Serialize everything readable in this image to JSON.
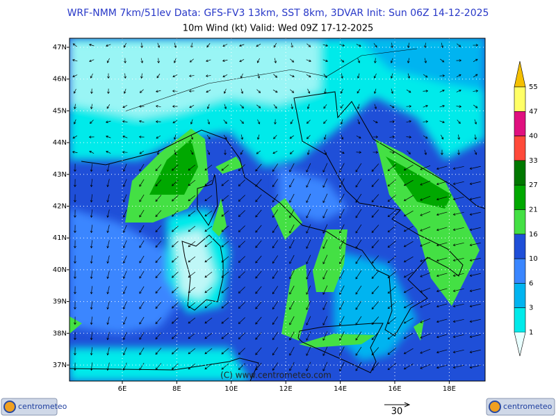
{
  "header": {
    "line1": "WRF-NMM 7km/51lev   Data: GFS-FV3 13km, SST 8km, 3DVAR   Init: Sun 06Z 14-12-2025",
    "line2": "10m Wind (kt)  Valid: Wed 09Z 17-12-2025"
  },
  "map": {
    "lat_labels": [
      "47N",
      "46N",
      "45N",
      "44N",
      "43N",
      "42N",
      "41N",
      "40N",
      "39N",
      "38N",
      "37N"
    ],
    "lon_labels": [
      "6E",
      "8E",
      "10E",
      "12E",
      "14E",
      "16E",
      "18E"
    ],
    "credit": "(C) www.centrometeo.com"
  },
  "legend": {
    "levels": [
      55,
      47,
      40,
      33,
      27,
      21,
      16,
      10,
      6,
      3,
      1
    ],
    "colors": [
      "#f5c000",
      "#ffff66",
      "#e0107f",
      "#ff4a3a",
      "#007800",
      "#00a800",
      "#44e044",
      "#1f4fd8",
      "#3a86ff",
      "#00b4f0",
      "#00eaea"
    ]
  },
  "reference_vector": "30",
  "logos": [
    "centrometeo",
    "centrometeo"
  ]
}
